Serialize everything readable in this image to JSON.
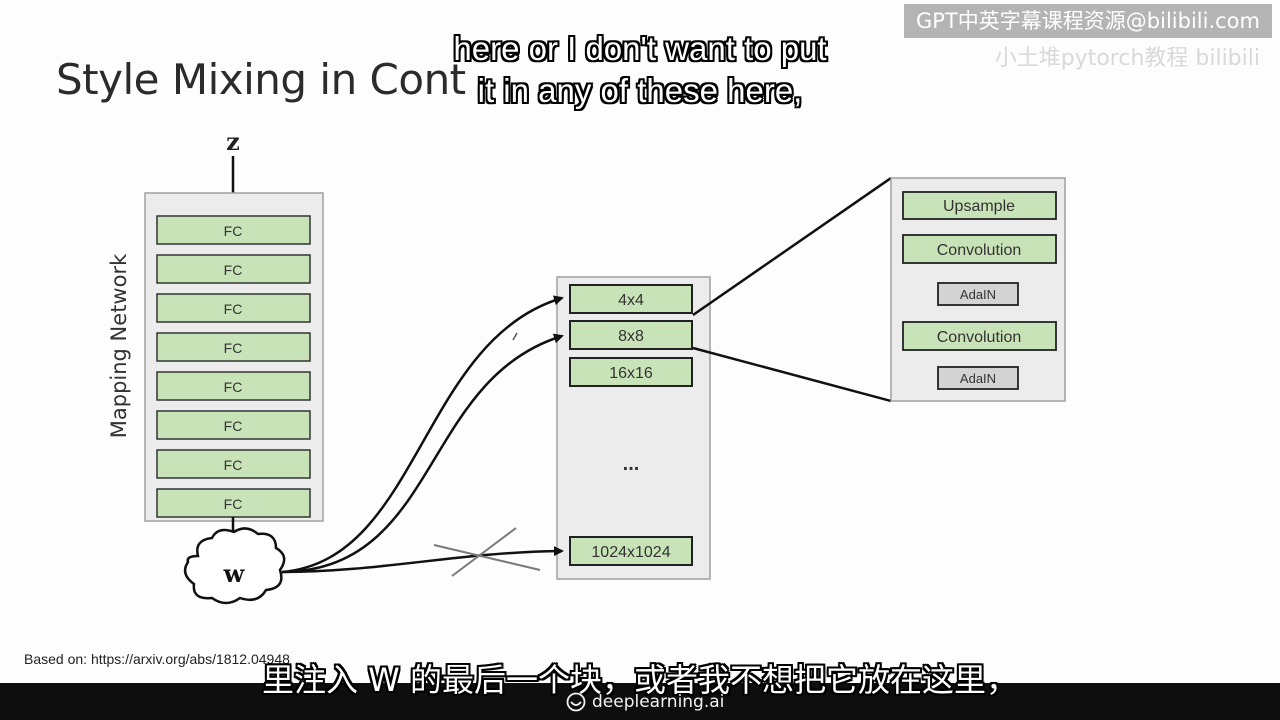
{
  "slide": {
    "title": "Style Mixing in Cont",
    "source": "Based on: https://arxiv.org/abs/1812.04948"
  },
  "subtitles": {
    "english_line1": "here or I don't want to put",
    "english_line2": "it in any of these here,",
    "chinese": "里注入 W 的最后一个块，或者我不想把它放在这里，"
  },
  "watermark": {
    "text": "GPT中英字幕课程资源@bilibili.com",
    "faint_text": "小土堆pytorch教程 bilibili"
  },
  "brand": {
    "text": "deeplearning.ai",
    "icon": "deeplearning-logo-icon"
  },
  "diagram": {
    "input_label": "z",
    "mapping_network_label": "Mapping Network",
    "fc_layers": [
      "FC",
      "FC",
      "FC",
      "FC",
      "FC",
      "FC",
      "FC",
      "FC"
    ],
    "w_label": "w",
    "synthesis_blocks": [
      "4x4",
      "8x8",
      "16x16"
    ],
    "ellipsis": "...",
    "last_block": "1024x1024",
    "detail_blocks": [
      {
        "label": "Upsample",
        "kind": "large"
      },
      {
        "label": "Convolution",
        "kind": "large"
      },
      {
        "label": "AdaIN",
        "kind": "small"
      },
      {
        "label": "Convolution",
        "kind": "large"
      },
      {
        "label": "AdaIN",
        "kind": "small"
      }
    ],
    "colors": {
      "block_fill": "#c9e3b8",
      "panel_fill": "#ececec",
      "adain_fill": "#d3d3d3",
      "cross_color": "#7a7a7a"
    }
  }
}
